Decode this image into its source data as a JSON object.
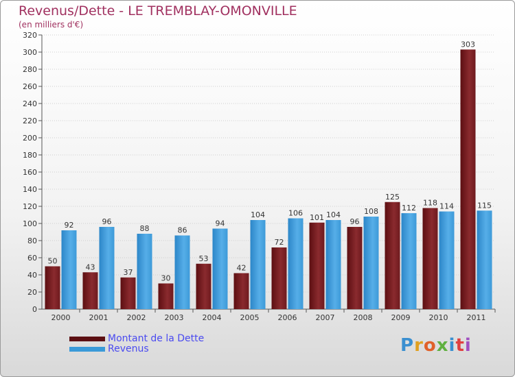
{
  "chart_data": {
    "type": "bar",
    "title": "Revenus/Dette - LE TREMBLAY-OMONVILLE",
    "subtitle": "(en milliers d'€)",
    "categories": [
      "2000",
      "2001",
      "2002",
      "2003",
      "2004",
      "2005",
      "2006",
      "2007",
      "2008",
      "2009",
      "2010",
      "2011"
    ],
    "series": [
      {
        "name": "Montant de la Dette",
        "color": "#7a1a1a",
        "values": [
          50,
          43,
          37,
          30,
          53,
          42,
          72,
          101,
          96,
          125,
          118,
          303
        ]
      },
      {
        "name": "Revenus",
        "color": "#3a9ad8",
        "values": [
          92,
          96,
          88,
          86,
          94,
          104,
          106,
          104,
          108,
          112,
          114,
          115
        ]
      }
    ],
    "ylim": [
      0,
      320
    ],
    "ytick_step": 20,
    "grid": true,
    "legend_position": "bottom-left"
  },
  "logo": {
    "text": "Proxiti",
    "colors": [
      "#3a8fd0",
      "#e0a020",
      "#e0602a",
      "#60b040",
      "#3a8fd0",
      "#e04040",
      "#a050c0"
    ]
  }
}
